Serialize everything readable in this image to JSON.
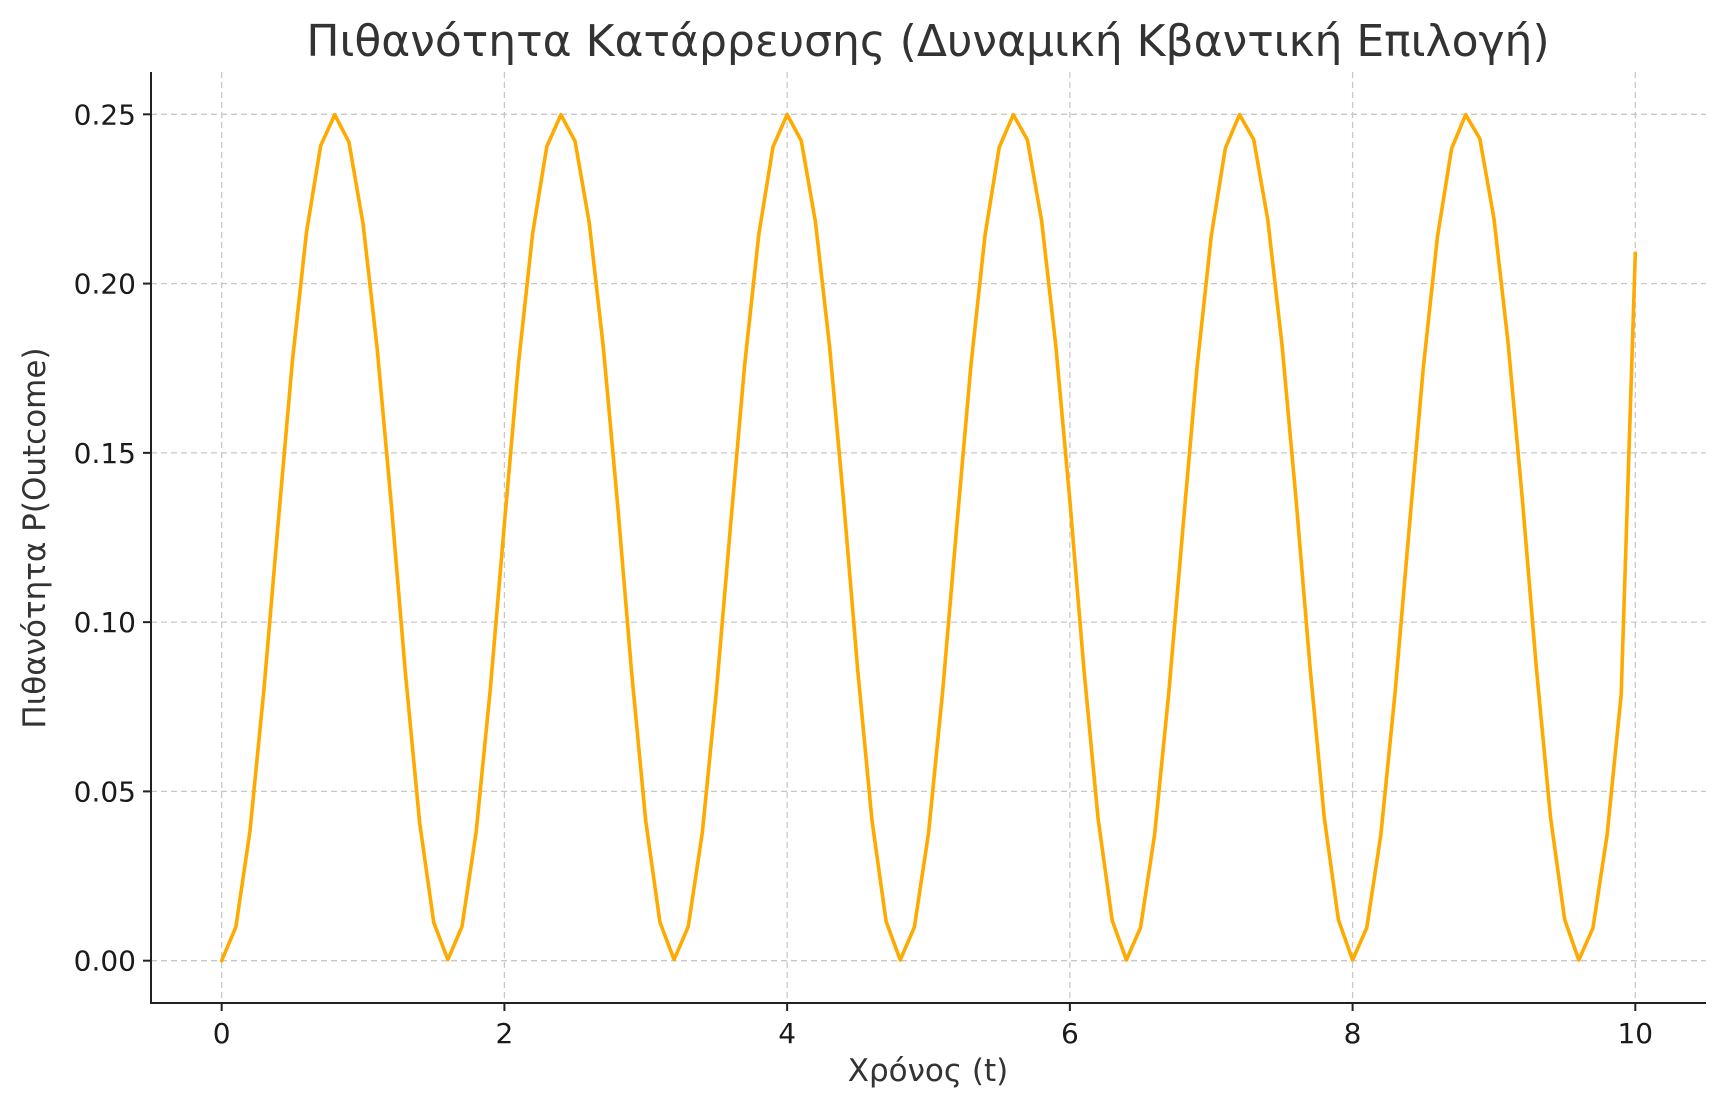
{
  "chart_data": {
    "type": "line",
    "title": "Πιθανότητα Κατάρρευσης (Δυναμική Κβαντική Επιλογή)",
    "xlabel": "Χρόνος (t)",
    "ylabel": "Πιθανότητα P(Outcome)",
    "xlim": [
      -0.5,
      10.5
    ],
    "ylim": [
      -0.0125,
      0.2625
    ],
    "x_ticks": [
      0,
      2,
      4,
      6,
      8,
      10
    ],
    "x_tick_labels": [
      "0",
      "2",
      "4",
      "6",
      "8",
      "10"
    ],
    "y_ticks": [
      0.0,
      0.05,
      0.1,
      0.15,
      0.2,
      0.25
    ],
    "y_tick_labels": [
      "0.00",
      "0.05",
      "0.10",
      "0.15",
      "0.20",
      "0.25"
    ],
    "grid": true,
    "legend": "none",
    "line_color": "#FFAA00",
    "series": [
      {
        "x": [
          0.0,
          0.1,
          0.2,
          0.3,
          0.4,
          0.5,
          0.6,
          0.7,
          0.8,
          0.9,
          1.0,
          1.1,
          1.2,
          1.3,
          1.4,
          1.5,
          1.6,
          1.7,
          1.8,
          1.9,
          2.0,
          2.1,
          2.2,
          2.3,
          2.4,
          2.5,
          2.6,
          2.7,
          2.8,
          2.9,
          3.0,
          3.1,
          3.2,
          3.3,
          3.4,
          3.5,
          3.6,
          3.7,
          3.8,
          3.9,
          4.0,
          4.1,
          4.2,
          4.3,
          4.4,
          4.5,
          4.6,
          4.7,
          4.8,
          4.9,
          5.0,
          5.1,
          5.2,
          5.3,
          5.4,
          5.5,
          5.6,
          5.7,
          5.8,
          5.9,
          6.0,
          6.1,
          6.2,
          6.3,
          6.4,
          6.5,
          6.6,
          6.7,
          6.8,
          6.9,
          7.0,
          7.1,
          7.2,
          7.3,
          7.4,
          7.5,
          7.6,
          7.7,
          7.8,
          7.9,
          8.0,
          8.1,
          8.2,
          8.3,
          8.4,
          8.5,
          8.6,
          8.7,
          8.8,
          8.9,
          9.0,
          9.1,
          9.2,
          9.3,
          9.4,
          9.5,
          9.6,
          9.7,
          9.8,
          9.9,
          10.0
        ],
        "y": [
          0.0,
          0.0099,
          0.0382,
          0.0806,
          0.1295,
          0.177,
          0.2152,
          0.2407,
          0.2499,
          0.2418,
          0.2177,
          0.1808,
          0.1347,
          0.0848,
          0.0409,
          0.0113,
          0.0003,
          0.0101,
          0.038,
          0.0801,
          0.1291,
          0.1766,
          0.2149,
          0.2405,
          0.2499,
          0.242,
          0.218,
          0.1811,
          0.1351,
          0.0851,
          0.0412,
          0.0114,
          0.0003,
          0.01,
          0.0378,
          0.0798,
          0.1287,
          0.1762,
          0.2146,
          0.2404,
          0.2499,
          0.2422,
          0.2183,
          0.1815,
          0.1355,
          0.0855,
          0.0415,
          0.0116,
          0.0002,
          0.0099,
          0.0376,
          0.0795,
          0.1283,
          0.1758,
          0.2143,
          0.2402,
          0.2499,
          0.2424,
          0.2186,
          0.1818,
          0.1359,
          0.0858,
          0.0418,
          0.0118,
          0.0002,
          0.0098,
          0.0374,
          0.0792,
          0.1279,
          0.1754,
          0.214,
          0.24,
          0.2499,
          0.2426,
          0.2189,
          0.1822,
          0.1363,
          0.0862,
          0.0421,
          0.012,
          0.0002,
          0.0097,
          0.0372,
          0.0789,
          0.1275,
          0.175,
          0.2137,
          0.2398,
          0.2499,
          0.2428,
          0.2192,
          0.1825,
          0.1367,
          0.0865,
          0.0424,
          0.0122,
          0.0002,
          0.0096,
          0.037,
          0.0786,
          0.209
        ]
      }
    ]
  }
}
